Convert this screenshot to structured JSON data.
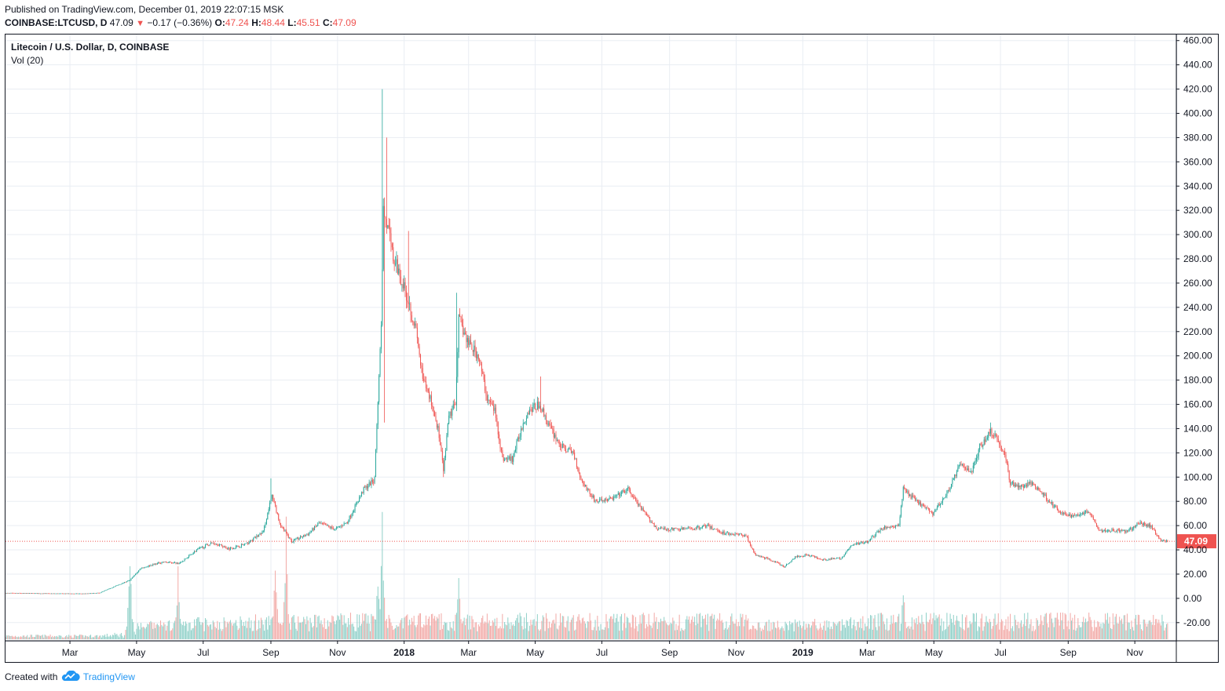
{
  "header": {
    "published": "Published on TradingView.com, December 01, 2019 22:07:15 MSK",
    "symbol": "COINBASE:LTCUSD, D",
    "last": "47.09",
    "arrow": "▼",
    "change": "−0.17 (−0.36%)",
    "o_label": "O:",
    "o": "47.24",
    "h_label": "H:",
    "h": "48.44",
    "l_label": "L:",
    "l": "45.51",
    "c_label": "C:",
    "c": "47.09"
  },
  "legend": {
    "main": "Litecoin / U.S. Dollar, D, COINBASE",
    "vol": "Vol (20)"
  },
  "footer": {
    "created": "Created with",
    "brand": "TradingView",
    "logo_icon": "tradingview-cloud-icon"
  },
  "colors": {
    "up": "#26a69a",
    "down": "#ef5350",
    "vol_up": "#8fd0c8",
    "vol_down": "#f2a9a6",
    "grid": "#e9edf3",
    "price_line": "#ef5350"
  },
  "chart_data": {
    "type": "candlestick",
    "title": "Litecoin / U.S. Dollar, D, COINBASE",
    "indicator": "Vol (20)",
    "ylim": [
      -35,
      465
    ],
    "y_ticks": [
      "460.00",
      "440.00",
      "420.00",
      "400.00",
      "380.00",
      "360.00",
      "340.00",
      "320.00",
      "300.00",
      "280.00",
      "260.00",
      "240.00",
      "220.00",
      "200.00",
      "180.00",
      "160.00",
      "140.00",
      "120.00",
      "100.00",
      "80.00",
      "60.00",
      "40.00",
      "20.00",
      "0.00",
      "-20.00"
    ],
    "x_ticks": [
      {
        "label": "Mar",
        "date": "2017-03-01"
      },
      {
        "label": "May",
        "date": "2017-05-01"
      },
      {
        "label": "Jul",
        "date": "2017-07-01"
      },
      {
        "label": "Sep",
        "date": "2017-09-01"
      },
      {
        "label": "Nov",
        "date": "2017-11-01"
      },
      {
        "label": "2018",
        "date": "2018-01-01",
        "bold": true
      },
      {
        "label": "Mar",
        "date": "2018-03-01"
      },
      {
        "label": "May",
        "date": "2018-05-01"
      },
      {
        "label": "Jul",
        "date": "2018-07-01"
      },
      {
        "label": "Sep",
        "date": "2018-09-01"
      },
      {
        "label": "Nov",
        "date": "2018-11-01"
      },
      {
        "label": "2019",
        "date": "2019-01-01",
        "bold": true
      },
      {
        "label": "Mar",
        "date": "2019-03-01"
      },
      {
        "label": "May",
        "date": "2019-05-01"
      },
      {
        "label": "Jul",
        "date": "2019-07-01"
      },
      {
        "label": "Sep",
        "date": "2019-09-01"
      },
      {
        "label": "Nov",
        "date": "2019-11-01"
      }
    ],
    "last_price": 47.09,
    "last_price_label": "47.09",
    "price_keypoints": [
      [
        "2017-01-01",
        4.4
      ],
      [
        "2017-02-15",
        4.0
      ],
      [
        "2017-03-15",
        3.9
      ],
      [
        "2017-03-28",
        4.5
      ],
      [
        "2017-04-10",
        9.5
      ],
      [
        "2017-04-25",
        15
      ],
      [
        "2017-05-05",
        25
      ],
      [
        "2017-05-25",
        30
      ],
      [
        "2017-06-10",
        29
      ],
      [
        "2017-06-25",
        40
      ],
      [
        "2017-07-10",
        46
      ],
      [
        "2017-07-25",
        41
      ],
      [
        "2017-08-10",
        45
      ],
      [
        "2017-08-25",
        55
      ],
      [
        "2017-09-02",
        85
      ],
      [
        "2017-09-10",
        60
      ],
      [
        "2017-09-20",
        47
      ],
      [
        "2017-10-05",
        53
      ],
      [
        "2017-10-15",
        62
      ],
      [
        "2017-10-30",
        57
      ],
      [
        "2017-11-10",
        63
      ],
      [
        "2017-11-25",
        90
      ],
      [
        "2017-12-05",
        98
      ],
      [
        "2017-12-11",
        230
      ],
      [
        "2017-12-13",
        320
      ],
      [
        "2017-12-18",
        300
      ],
      [
        "2017-12-22",
        280
      ],
      [
        "2017-12-27",
        270
      ],
      [
        "2018-01-05",
        245
      ],
      [
        "2018-01-12",
        220
      ],
      [
        "2018-01-18",
        180
      ],
      [
        "2018-01-25",
        165
      ],
      [
        "2018-02-01",
        140
      ],
      [
        "2018-02-06",
        105
      ],
      [
        "2018-02-11",
        150
      ],
      [
        "2018-02-17",
        160
      ],
      [
        "2018-02-20",
        230
      ],
      [
        "2018-03-01",
        210
      ],
      [
        "2018-03-10",
        200
      ],
      [
        "2018-03-18",
        165
      ],
      [
        "2018-03-25",
        155
      ],
      [
        "2018-04-01",
        115
      ],
      [
        "2018-04-10",
        115
      ],
      [
        "2018-04-20",
        145
      ],
      [
        "2018-04-25",
        155
      ],
      [
        "2018-05-05",
        160
      ],
      [
        "2018-05-15",
        140
      ],
      [
        "2018-05-25",
        125
      ],
      [
        "2018-06-05",
        120
      ],
      [
        "2018-06-12",
        98
      ],
      [
        "2018-06-25",
        80
      ],
      [
        "2018-07-10",
        82
      ],
      [
        "2018-07-25",
        90
      ],
      [
        "2018-08-05",
        75
      ],
      [
        "2018-08-20",
        58
      ],
      [
        "2018-08-30",
        57
      ],
      [
        "2018-09-10",
        57
      ],
      [
        "2018-09-25",
        58
      ],
      [
        "2018-10-05",
        60
      ],
      [
        "2018-10-20",
        54
      ],
      [
        "2018-11-10",
        52
      ],
      [
        "2018-11-18",
        36
      ],
      [
        "2018-12-05",
        31
      ],
      [
        "2018-12-15",
        26
      ],
      [
        "2018-12-25",
        34
      ],
      [
        "2019-01-05",
        36
      ],
      [
        "2019-01-20",
        32
      ],
      [
        "2019-02-05",
        33
      ],
      [
        "2019-02-15",
        44
      ],
      [
        "2019-03-01",
        47
      ],
      [
        "2019-03-15",
        58
      ],
      [
        "2019-03-30",
        60
      ],
      [
        "2019-04-03",
        90
      ],
      [
        "2019-04-15",
        80
      ],
      [
        "2019-04-30",
        70
      ],
      [
        "2019-05-12",
        85
      ],
      [
        "2019-05-25",
        110
      ],
      [
        "2019-06-05",
        105
      ],
      [
        "2019-06-12",
        125
      ],
      [
        "2019-06-22",
        138
      ],
      [
        "2019-06-26",
        135
      ],
      [
        "2019-07-05",
        118
      ],
      [
        "2019-07-10",
        95
      ],
      [
        "2019-07-20",
        92
      ],
      [
        "2019-07-30",
        95
      ],
      [
        "2019-08-10",
        85
      ],
      [
        "2019-08-25",
        70
      ],
      [
        "2019-09-05",
        68
      ],
      [
        "2019-09-20",
        72
      ],
      [
        "2019-09-30",
        56
      ],
      [
        "2019-10-15",
        56
      ],
      [
        "2019-10-25",
        55
      ],
      [
        "2019-11-05",
        62
      ],
      [
        "2019-11-15",
        60
      ],
      [
        "2019-11-25",
        48
      ],
      [
        "2019-12-01",
        47.09
      ]
    ],
    "wick_spikes": [
      [
        "2017-09-01",
        99,
        "high"
      ],
      [
        "2017-12-12",
        420,
        "high"
      ],
      [
        "2017-12-16",
        380,
        "high"
      ],
      [
        "2017-12-14",
        145,
        "low"
      ],
      [
        "2018-01-05",
        303,
        "high"
      ],
      [
        "2018-02-18",
        252,
        "high"
      ],
      [
        "2018-02-06",
        100,
        "low"
      ],
      [
        "2018-05-06",
        183,
        "high"
      ],
      [
        "2019-06-22",
        145,
        "high"
      ]
    ],
    "volume_peaks": [
      [
        "2017-04-25",
        0.7
      ],
      [
        "2017-06-08",
        0.65
      ],
      [
        "2017-09-05",
        0.65
      ],
      [
        "2017-09-15",
        0.8
      ],
      [
        "2017-12-12",
        1.0
      ],
      [
        "2017-12-08",
        0.55
      ],
      [
        "2018-02-20",
        0.5
      ],
      [
        "2019-04-03",
        0.45
      ]
    ]
  }
}
